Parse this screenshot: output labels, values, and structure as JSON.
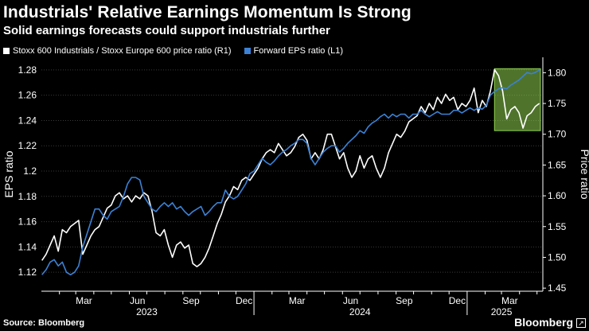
{
  "header": {
    "title": "Industrials' Relative Earnings Momentum Is Strong",
    "subtitle": "Solid earnings forecasts could support industrials further"
  },
  "footer": {
    "source": "Source: Bloomberg",
    "brand": "Bloomberg"
  },
  "chart_data": {
    "type": "line",
    "series": [
      {
        "name": "Stoxx 600 Industrials / Stoxx Europe 600 price ratio (R1)",
        "axis": "right",
        "color": "#ffffff",
        "points": [
          [
            "2023-01-02",
            1.495
          ],
          [
            "2023-01-09",
            1.505
          ],
          [
            "2023-01-16",
            1.52
          ],
          [
            "2023-01-23",
            1.535
          ],
          [
            "2023-01-30",
            1.51
          ],
          [
            "2023-02-06",
            1.545
          ],
          [
            "2023-02-13",
            1.54
          ],
          [
            "2023-02-20",
            1.55
          ],
          [
            "2023-02-27",
            1.555
          ],
          [
            "2023-03-06",
            1.56
          ],
          [
            "2023-03-13",
            1.505
          ],
          [
            "2023-03-20",
            1.52
          ],
          [
            "2023-03-27",
            1.535
          ],
          [
            "2023-04-03",
            1.545
          ],
          [
            "2023-04-10",
            1.55
          ],
          [
            "2023-04-17",
            1.565
          ],
          [
            "2023-04-24",
            1.58
          ],
          [
            "2023-05-01",
            1.585
          ],
          [
            "2023-05-08",
            1.6
          ],
          [
            "2023-05-15",
            1.605
          ],
          [
            "2023-05-22",
            1.595
          ],
          [
            "2023-05-29",
            1.6
          ],
          [
            "2023-06-05",
            1.59
          ],
          [
            "2023-06-12",
            1.6
          ],
          [
            "2023-06-19",
            1.595
          ],
          [
            "2023-06-26",
            1.605
          ],
          [
            "2023-07-03",
            1.6
          ],
          [
            "2023-07-10",
            1.575
          ],
          [
            "2023-07-17",
            1.54
          ],
          [
            "2023-07-24",
            1.535
          ],
          [
            "2023-07-31",
            1.545
          ],
          [
            "2023-08-07",
            1.52
          ],
          [
            "2023-08-14",
            1.5
          ],
          [
            "2023-08-21",
            1.52
          ],
          [
            "2023-08-28",
            1.525
          ],
          [
            "2023-09-04",
            1.515
          ],
          [
            "2023-09-11",
            1.52
          ],
          [
            "2023-09-18",
            1.49
          ],
          [
            "2023-09-25",
            1.485
          ],
          [
            "2023-10-02",
            1.49
          ],
          [
            "2023-10-09",
            1.5
          ],
          [
            "2023-10-16",
            1.515
          ],
          [
            "2023-10-23",
            1.535
          ],
          [
            "2023-10-30",
            1.555
          ],
          [
            "2023-11-06",
            1.57
          ],
          [
            "2023-11-13",
            1.59
          ],
          [
            "2023-11-20",
            1.6
          ],
          [
            "2023-11-27",
            1.615
          ],
          [
            "2023-12-04",
            1.61
          ],
          [
            "2023-12-11",
            1.625
          ],
          [
            "2023-12-18",
            1.63
          ],
          [
            "2023-12-25",
            1.625
          ],
          [
            "2024-01-01",
            1.635
          ],
          [
            "2024-01-08",
            1.645
          ],
          [
            "2024-01-15",
            1.66
          ],
          [
            "2024-01-22",
            1.67
          ],
          [
            "2024-01-29",
            1.675
          ],
          [
            "2024-02-05",
            1.67
          ],
          [
            "2024-02-12",
            1.685
          ],
          [
            "2024-02-19",
            1.675
          ],
          [
            "2024-02-26",
            1.665
          ],
          [
            "2024-03-04",
            1.67
          ],
          [
            "2024-03-11",
            1.68
          ],
          [
            "2024-03-18",
            1.695
          ],
          [
            "2024-03-25",
            1.7
          ],
          [
            "2024-04-01",
            1.69
          ],
          [
            "2024-04-08",
            1.66
          ],
          [
            "2024-04-15",
            1.67
          ],
          [
            "2024-04-22",
            1.66
          ],
          [
            "2024-04-29",
            1.675
          ],
          [
            "2024-05-06",
            1.7
          ],
          [
            "2024-05-13",
            1.7
          ],
          [
            "2024-05-20",
            1.68
          ],
          [
            "2024-05-27",
            1.66
          ],
          [
            "2024-06-03",
            1.67
          ],
          [
            "2024-06-10",
            1.645
          ],
          [
            "2024-06-17",
            1.63
          ],
          [
            "2024-06-24",
            1.64
          ],
          [
            "2024-07-01",
            1.665
          ],
          [
            "2024-07-08",
            1.645
          ],
          [
            "2024-07-15",
            1.66
          ],
          [
            "2024-07-22",
            1.665
          ],
          [
            "2024-07-29",
            1.645
          ],
          [
            "2024-08-05",
            1.63
          ],
          [
            "2024-08-12",
            1.645
          ],
          [
            "2024-08-19",
            1.67
          ],
          [
            "2024-08-26",
            1.685
          ],
          [
            "2024-09-02",
            1.7
          ],
          [
            "2024-09-09",
            1.695
          ],
          [
            "2024-09-16",
            1.705
          ],
          [
            "2024-09-23",
            1.72
          ],
          [
            "2024-09-30",
            1.725
          ],
          [
            "2024-10-07",
            1.73
          ],
          [
            "2024-10-14",
            1.745
          ],
          [
            "2024-10-21",
            1.735
          ],
          [
            "2024-10-28",
            1.75
          ],
          [
            "2024-11-04",
            1.74
          ],
          [
            "2024-11-11",
            1.76
          ],
          [
            "2024-11-18",
            1.75
          ],
          [
            "2024-11-25",
            1.765
          ],
          [
            "2024-12-02",
            1.755
          ],
          [
            "2024-12-09",
            1.76
          ],
          [
            "2024-12-16",
            1.74
          ],
          [
            "2024-12-23",
            1.75
          ],
          [
            "2024-12-30",
            1.745
          ],
          [
            "2025-01-06",
            1.755
          ],
          [
            "2025-01-13",
            1.775
          ],
          [
            "2025-01-20",
            1.735
          ],
          [
            "2025-01-27",
            1.755
          ],
          [
            "2025-02-03",
            1.745
          ],
          [
            "2025-02-10",
            1.77
          ],
          [
            "2025-02-17",
            1.805
          ],
          [
            "2025-02-24",
            1.795
          ],
          [
            "2025-03-03",
            1.77
          ],
          [
            "2025-03-10",
            1.725
          ],
          [
            "2025-03-17",
            1.74
          ],
          [
            "2025-03-24",
            1.745
          ],
          [
            "2025-03-31",
            1.735
          ],
          [
            "2025-04-07",
            1.71
          ],
          [
            "2025-04-14",
            1.73
          ],
          [
            "2025-04-21",
            1.735
          ],
          [
            "2025-04-28",
            1.745
          ],
          [
            "2025-05-05",
            1.75
          ]
        ]
      },
      {
        "name": "Forward EPS ratio (L1)",
        "axis": "left",
        "color": "#3b82d6",
        "points": [
          [
            "2023-01-02",
            1.118
          ],
          [
            "2023-01-09",
            1.122
          ],
          [
            "2023-01-16",
            1.128
          ],
          [
            "2023-01-23",
            1.13
          ],
          [
            "2023-01-30",
            1.125
          ],
          [
            "2023-02-06",
            1.128
          ],
          [
            "2023-02-13",
            1.12
          ],
          [
            "2023-02-20",
            1.118
          ],
          [
            "2023-02-27",
            1.12
          ],
          [
            "2023-03-06",
            1.125
          ],
          [
            "2023-03-13",
            1.14
          ],
          [
            "2023-03-20",
            1.15
          ],
          [
            "2023-03-27",
            1.16
          ],
          [
            "2023-04-03",
            1.17
          ],
          [
            "2023-04-10",
            1.17
          ],
          [
            "2023-04-17",
            1.165
          ],
          [
            "2023-04-24",
            1.162
          ],
          [
            "2023-05-01",
            1.168
          ],
          [
            "2023-05-08",
            1.17
          ],
          [
            "2023-05-15",
            1.172
          ],
          [
            "2023-05-22",
            1.18
          ],
          [
            "2023-05-29",
            1.19
          ],
          [
            "2023-06-05",
            1.195
          ],
          [
            "2023-06-12",
            1.195
          ],
          [
            "2023-06-19",
            1.193
          ],
          [
            "2023-06-26",
            1.18
          ],
          [
            "2023-07-03",
            1.175
          ],
          [
            "2023-07-10",
            1.17
          ],
          [
            "2023-07-17",
            1.168
          ],
          [
            "2023-07-24",
            1.172
          ],
          [
            "2023-07-31",
            1.175
          ],
          [
            "2023-08-07",
            1.172
          ],
          [
            "2023-08-14",
            1.175
          ],
          [
            "2023-08-21",
            1.17
          ],
          [
            "2023-08-28",
            1.172
          ],
          [
            "2023-09-04",
            1.168
          ],
          [
            "2023-09-11",
            1.165
          ],
          [
            "2023-09-18",
            1.168
          ],
          [
            "2023-09-25",
            1.17
          ],
          [
            "2023-10-02",
            1.172
          ],
          [
            "2023-10-09",
            1.165
          ],
          [
            "2023-10-16",
            1.168
          ],
          [
            "2023-10-23",
            1.172
          ],
          [
            "2023-10-30",
            1.175
          ],
          [
            "2023-11-06",
            1.175
          ],
          [
            "2023-11-13",
            1.185
          ],
          [
            "2023-11-20",
            1.18
          ],
          [
            "2023-11-27",
            1.178
          ],
          [
            "2023-12-04",
            1.18
          ],
          [
            "2023-12-11",
            1.185
          ],
          [
            "2023-12-18",
            1.19
          ],
          [
            "2023-12-25",
            1.198
          ],
          [
            "2024-01-01",
            1.2
          ],
          [
            "2024-01-08",
            1.205
          ],
          [
            "2024-01-15",
            1.21
          ],
          [
            "2024-01-22",
            1.207
          ],
          [
            "2024-01-29",
            1.205
          ],
          [
            "2024-02-05",
            1.208
          ],
          [
            "2024-02-12",
            1.212
          ],
          [
            "2024-02-19",
            1.215
          ],
          [
            "2024-02-26",
            1.217
          ],
          [
            "2024-03-04",
            1.22
          ],
          [
            "2024-03-11",
            1.222
          ],
          [
            "2024-03-18",
            1.225
          ],
          [
            "2024-03-25",
            1.225
          ],
          [
            "2024-04-01",
            1.222
          ],
          [
            "2024-04-08",
            1.21
          ],
          [
            "2024-04-15",
            1.205
          ],
          [
            "2024-04-22",
            1.21
          ],
          [
            "2024-04-29",
            1.215
          ],
          [
            "2024-05-06",
            1.218
          ],
          [
            "2024-05-13",
            1.22
          ],
          [
            "2024-05-20",
            1.22
          ],
          [
            "2024-05-27",
            1.215
          ],
          [
            "2024-06-03",
            1.218
          ],
          [
            "2024-06-10",
            1.222
          ],
          [
            "2024-06-17",
            1.225
          ],
          [
            "2024-06-24",
            1.228
          ],
          [
            "2024-07-01",
            1.232
          ],
          [
            "2024-07-08",
            1.23
          ],
          [
            "2024-07-15",
            1.235
          ],
          [
            "2024-07-22",
            1.238
          ],
          [
            "2024-07-29",
            1.24
          ],
          [
            "2024-08-05",
            1.243
          ],
          [
            "2024-08-12",
            1.245
          ],
          [
            "2024-08-19",
            1.242
          ],
          [
            "2024-08-26",
            1.245
          ],
          [
            "2024-09-02",
            1.243
          ],
          [
            "2024-09-09",
            1.245
          ],
          [
            "2024-09-16",
            1.245
          ],
          [
            "2024-09-23",
            1.242
          ],
          [
            "2024-09-30",
            1.245
          ],
          [
            "2024-10-07",
            1.245
          ],
          [
            "2024-10-14",
            1.248
          ],
          [
            "2024-10-21",
            1.245
          ],
          [
            "2024-10-28",
            1.243
          ],
          [
            "2024-11-04",
            1.245
          ],
          [
            "2024-11-11",
            1.247
          ],
          [
            "2024-11-18",
            1.245
          ],
          [
            "2024-11-25",
            1.245
          ],
          [
            "2024-12-02",
            1.245
          ],
          [
            "2024-12-09",
            1.248
          ],
          [
            "2024-12-16",
            1.248
          ],
          [
            "2024-12-23",
            1.246
          ],
          [
            "2024-12-30",
            1.248
          ],
          [
            "2025-01-06",
            1.25
          ],
          [
            "2025-01-13",
            1.248
          ],
          [
            "2025-01-20",
            1.25
          ],
          [
            "2025-01-27",
            1.249
          ],
          [
            "2025-02-03",
            1.252
          ],
          [
            "2025-02-10",
            1.26
          ],
          [
            "2025-02-17",
            1.263
          ],
          [
            "2025-02-24",
            1.265
          ],
          [
            "2025-03-03",
            1.266
          ],
          [
            "2025-03-10",
            1.265
          ],
          [
            "2025-03-17",
            1.268
          ],
          [
            "2025-03-24",
            1.27
          ],
          [
            "2025-03-31",
            1.272
          ],
          [
            "2025-04-07",
            1.275
          ],
          [
            "2025-04-14",
            1.278
          ],
          [
            "2025-04-21",
            1.277
          ],
          [
            "2025-04-28",
            1.278
          ],
          [
            "2025-05-05",
            1.28
          ]
        ]
      }
    ],
    "y_left": {
      "label": "EPS ratio",
      "range": [
        1.105,
        1.29
      ],
      "ticks": [
        1.12,
        1.14,
        1.16,
        1.18,
        1.2,
        1.22,
        1.24,
        1.26,
        1.28
      ]
    },
    "y_right": {
      "label": "Price ratio",
      "range": [
        1.445,
        1.825
      ],
      "ticks": [
        1.45,
        1.5,
        1.55,
        1.6,
        1.65,
        1.7,
        1.75,
        1.8
      ]
    },
    "x_range": [
      "2023-01-01",
      "2025-05-11"
    ],
    "month_ticks": [
      {
        "date": "2023-03-15",
        "label": "Mar"
      },
      {
        "date": "2023-06-15",
        "label": "Jun"
      },
      {
        "date": "2023-09-15",
        "label": "Sep"
      },
      {
        "date": "2023-12-15",
        "label": "Dec"
      },
      {
        "date": "2024-03-15",
        "label": "Mar"
      },
      {
        "date": "2024-06-15",
        "label": "Jun"
      },
      {
        "date": "2024-09-15",
        "label": "Sep"
      },
      {
        "date": "2024-12-15",
        "label": "Dec"
      },
      {
        "date": "2025-03-15",
        "label": "Mar"
      }
    ],
    "year_ticks": [
      {
        "date": "2023-07-01",
        "label": "2023"
      },
      {
        "date": "2024-07-01",
        "label": "2024"
      },
      {
        "date": "2025-03-01",
        "label": "2025"
      }
    ],
    "highlight": {
      "from": "2025-02-17",
      "to": "2025-05-11",
      "y_left_from": 1.232,
      "y_left_to": 1.281,
      "color": "#8fd14f"
    },
    "grid": true,
    "legend_position": "top-left"
  }
}
